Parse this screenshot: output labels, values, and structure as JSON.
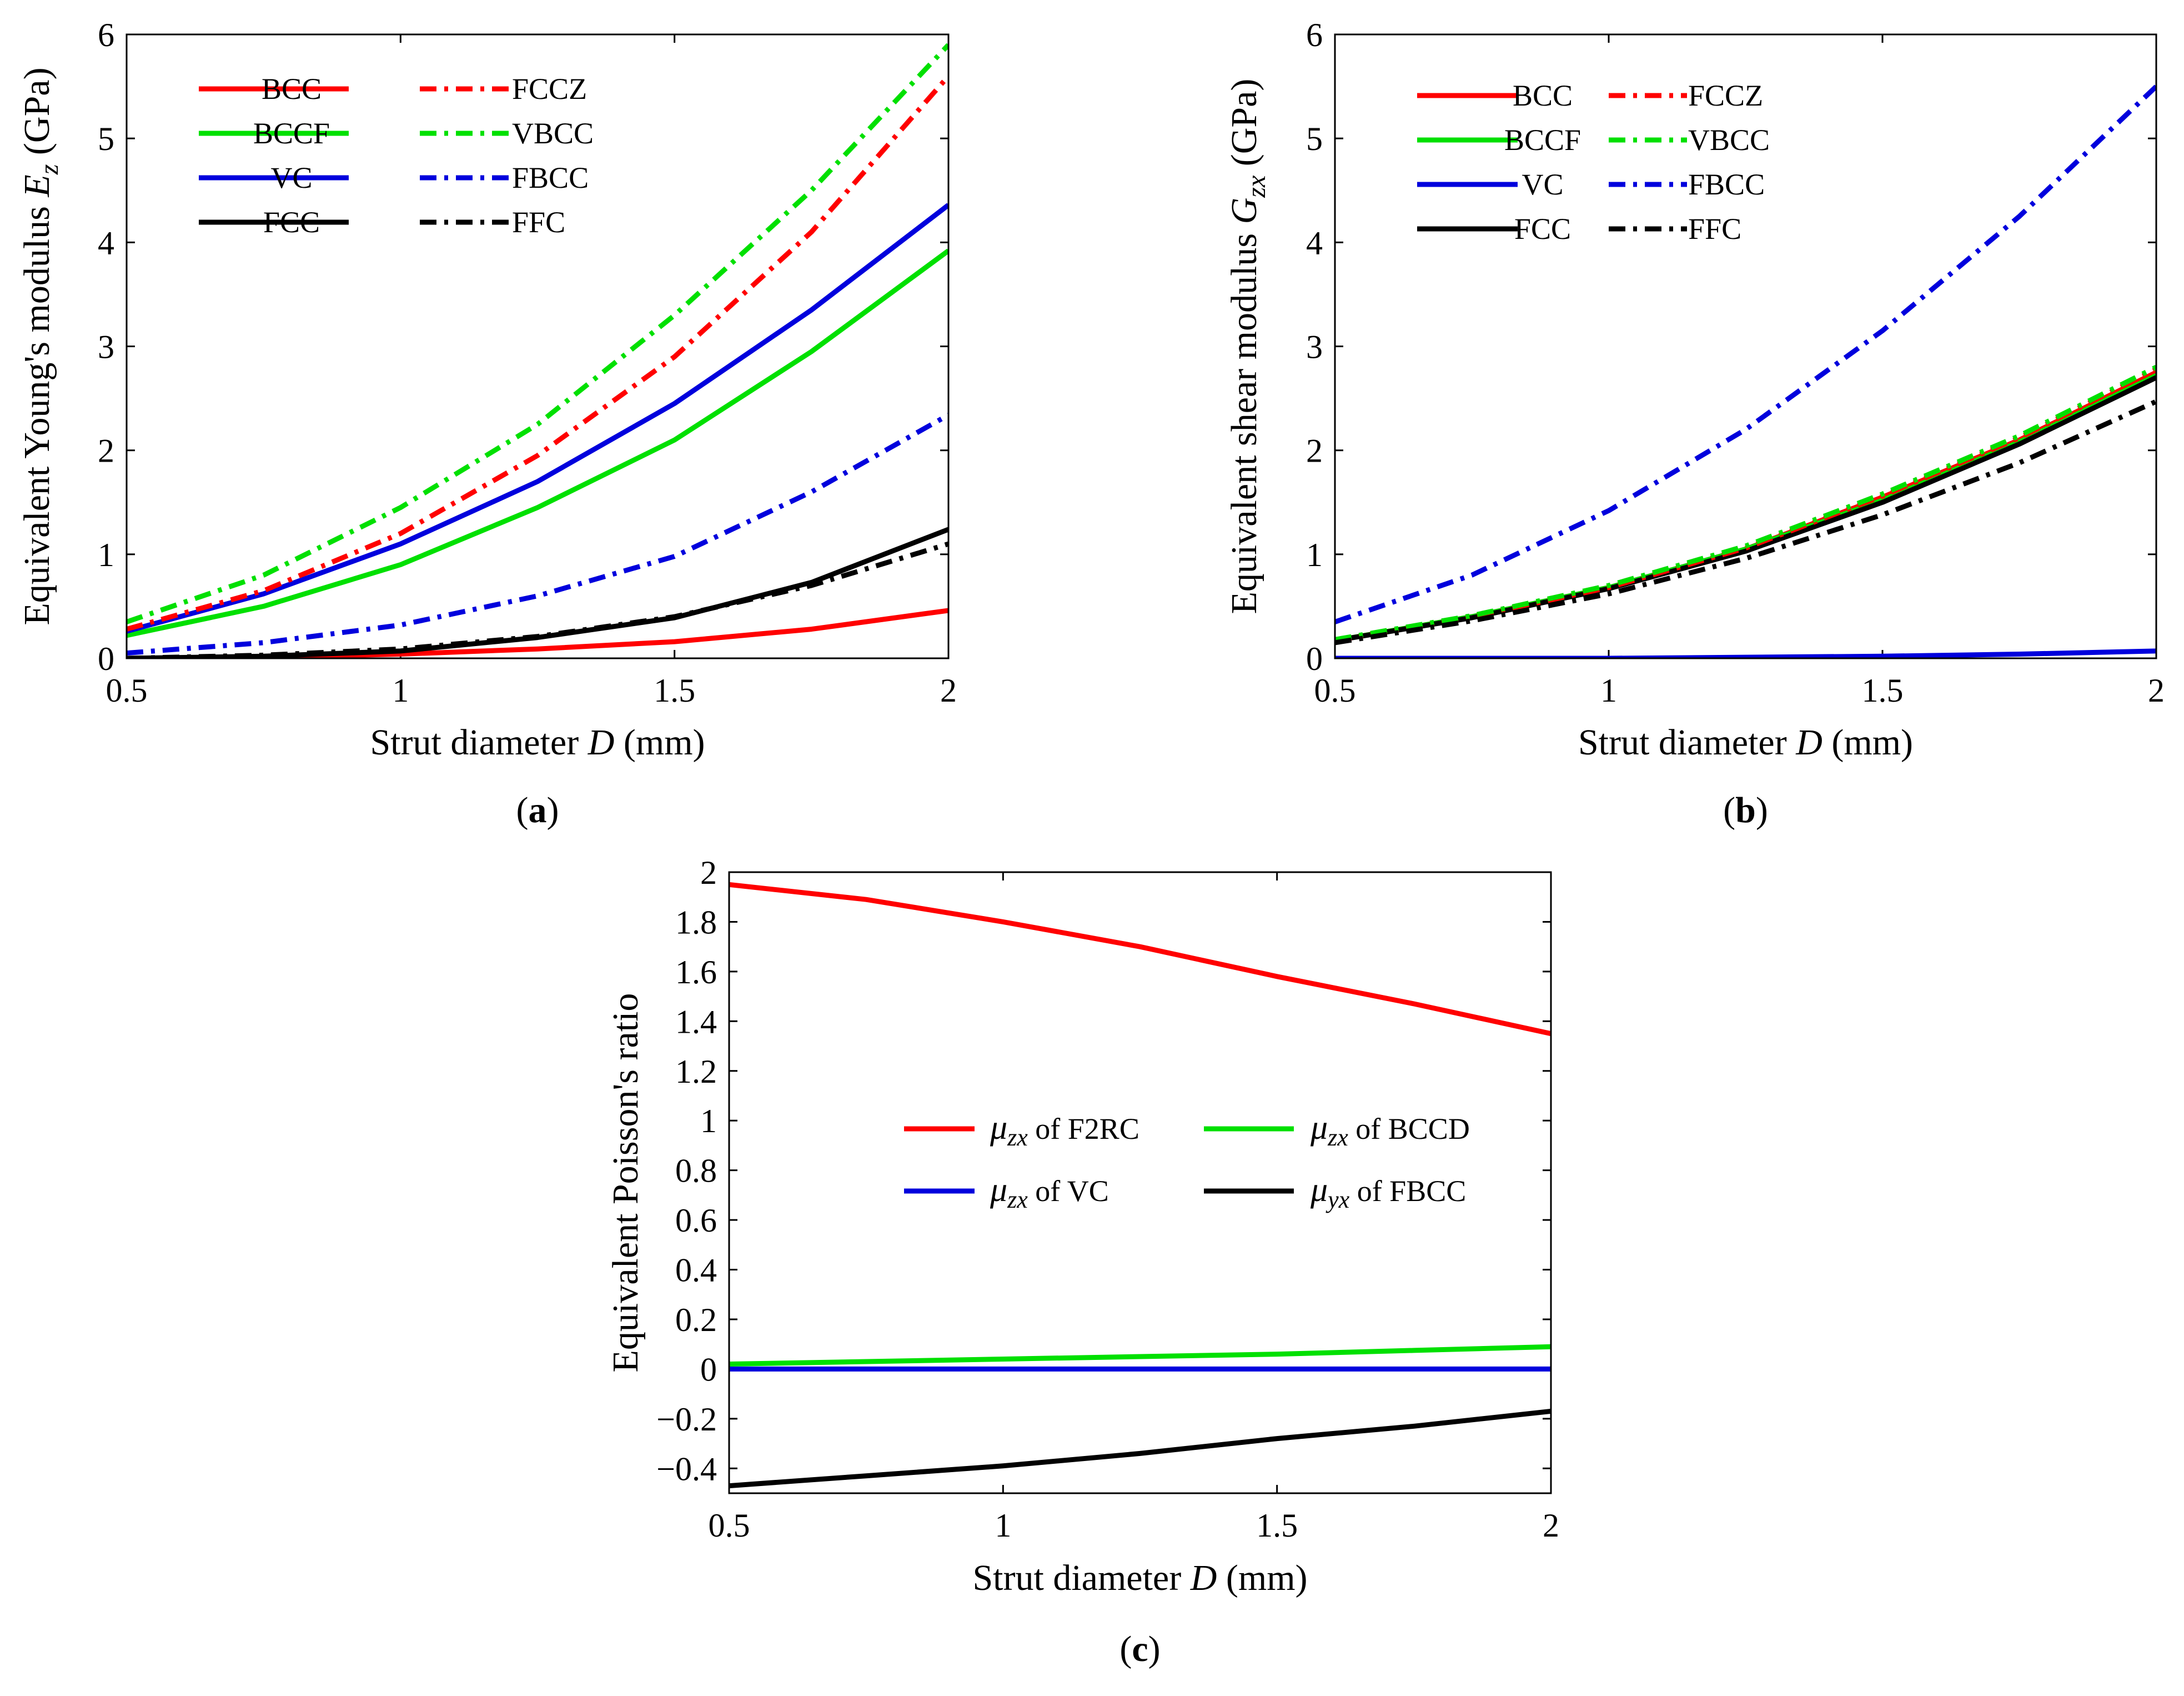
{
  "chart_data": [
    {
      "type": "line",
      "panel_label": "(a)",
      "xlabel": "Strut diameter D (mm)",
      "ylabel": "Equivalent Young's modulus E_z (GPa)",
      "xlim": [
        0.5,
        2
      ],
      "ylim": [
        0,
        6
      ],
      "xticks": [
        0.5,
        1,
        1.5,
        2
      ],
      "yticks": [
        0,
        1,
        2,
        3,
        4,
        5,
        6
      ],
      "legend_location": "top-left",
      "x": [
        0.5,
        0.75,
        1.0,
        1.25,
        1.5,
        1.75,
        2.0
      ],
      "series": [
        {
          "name": "BCC",
          "color": "#ff0000",
          "style": "solid",
          "values": [
            0.0,
            0.01,
            0.04,
            0.09,
            0.16,
            0.28,
            0.46
          ]
        },
        {
          "name": "BCCF",
          "color": "#00e000",
          "style": "solid",
          "values": [
            0.22,
            0.5,
            0.9,
            1.45,
            2.1,
            2.95,
            3.92
          ]
        },
        {
          "name": "VC",
          "color": "#0000dd",
          "style": "solid",
          "values": [
            0.26,
            0.62,
            1.1,
            1.7,
            2.45,
            3.35,
            4.36
          ]
        },
        {
          "name": "FCC",
          "color": "#000000",
          "style": "solid",
          "values": [
            0.0,
            0.02,
            0.07,
            0.2,
            0.39,
            0.73,
            1.24
          ]
        },
        {
          "name": "FCCZ",
          "color": "#ff0000",
          "style": "dashdot",
          "values": [
            0.28,
            0.65,
            1.2,
            1.95,
            2.9,
            4.1,
            5.6
          ]
        },
        {
          "name": "VBCC",
          "color": "#00e000",
          "style": "dashdot",
          "values": [
            0.35,
            0.8,
            1.45,
            2.25,
            3.3,
            4.5,
            5.9
          ]
        },
        {
          "name": "FBCC",
          "color": "#0000dd",
          "style": "dashdot",
          "values": [
            0.05,
            0.15,
            0.32,
            0.6,
            0.98,
            1.6,
            2.34
          ]
        },
        {
          "name": "FFC",
          "color": "#000000",
          "style": "dashdot",
          "values": [
            0.0,
            0.03,
            0.09,
            0.21,
            0.4,
            0.7,
            1.1
          ]
        }
      ]
    },
    {
      "type": "line",
      "panel_label": "(b)",
      "xlabel": "Strut diameter D (mm)",
      "ylabel": "Equivalent shear modulus G_zx (GPa)",
      "xlim": [
        0.5,
        2
      ],
      "ylim": [
        0,
        6
      ],
      "xticks": [
        0.5,
        1,
        1.5,
        2
      ],
      "yticks": [
        0,
        1,
        2,
        3,
        4,
        5,
        6
      ],
      "legend_location": "top-left",
      "x": [
        0.5,
        0.75,
        1.0,
        1.25,
        1.5,
        1.75,
        2.0
      ],
      "series": [
        {
          "name": "BCC",
          "color": "#ff0000",
          "style": "solid",
          "values": [
            0.17,
            0.4,
            0.68,
            1.05,
            1.55,
            2.1,
            2.75
          ]
        },
        {
          "name": "BCCF",
          "color": "#00e000",
          "style": "solid",
          "values": [
            0.17,
            0.4,
            0.68,
            1.05,
            1.52,
            2.08,
            2.72
          ]
        },
        {
          "name": "VC",
          "color": "#0000dd",
          "style": "solid",
          "values": [
            0.0,
            0.0,
            0.0,
            0.01,
            0.02,
            0.04,
            0.07
          ]
        },
        {
          "name": "FCC",
          "color": "#000000",
          "style": "solid",
          "values": [
            0.17,
            0.39,
            0.67,
            1.03,
            1.5,
            2.06,
            2.7
          ]
        },
        {
          "name": "FCCZ",
          "color": "#ff0000",
          "style": "dashdot",
          "values": [
            0.17,
            0.4,
            0.68,
            1.06,
            1.56,
            2.12,
            2.78
          ]
        },
        {
          "name": "VBCC",
          "color": "#00e000",
          "style": "dashdot",
          "values": [
            0.18,
            0.41,
            0.7,
            1.08,
            1.58,
            2.14,
            2.8
          ]
        },
        {
          "name": "FBCC",
          "color": "#0000dd",
          "style": "dashdot",
          "values": [
            0.35,
            0.8,
            1.42,
            2.2,
            3.15,
            4.25,
            5.5
          ]
        },
        {
          "name": "FFC",
          "color": "#000000",
          "style": "dashdot",
          "values": [
            0.15,
            0.36,
            0.62,
            0.96,
            1.38,
            1.88,
            2.47
          ]
        }
      ]
    },
    {
      "type": "line",
      "panel_label": "(c)",
      "xlabel": "Strut diameter D (mm)",
      "ylabel": "Equivalent Poisson's ratio",
      "xlim": [
        0.5,
        2
      ],
      "ylim": [
        -0.5,
        2
      ],
      "xticks": [
        0.5,
        1,
        1.5,
        2
      ],
      "yticks": [
        -0.4,
        -0.2,
        0,
        0.2,
        0.4,
        0.6,
        0.8,
        1,
        1.2,
        1.4,
        1.6,
        1.8,
        2
      ],
      "legend_location": "center",
      "x": [
        0.5,
        0.75,
        1.0,
        1.25,
        1.5,
        1.75,
        2.0
      ],
      "series": [
        {
          "name": "μ_zx of F2RC",
          "symbol": "μ",
          "sub": "zx",
          "suffix": " of F2RC",
          "color": "#ff0000",
          "style": "solid",
          "values": [
            1.95,
            1.89,
            1.8,
            1.7,
            1.58,
            1.47,
            1.35
          ]
        },
        {
          "name": "μ_zx of VC",
          "symbol": "μ",
          "sub": "zx",
          "suffix": " of VC",
          "color": "#0000dd",
          "style": "solid",
          "values": [
            0.0,
            0.0,
            0.0,
            0.0,
            0.0,
            0.0,
            0.0
          ]
        },
        {
          "name": "μ_zx of BCCD",
          "symbol": "μ",
          "sub": "zx",
          "suffix": " of BCCD",
          "color": "#00e000",
          "style": "solid",
          "values": [
            0.02,
            0.03,
            0.04,
            0.05,
            0.06,
            0.075,
            0.09
          ]
        },
        {
          "name": "μ_yx of FBCC",
          "symbol": "μ",
          "sub": "yx",
          "suffix": " of FBCC",
          "color": "#000000",
          "style": "solid",
          "values": [
            -0.47,
            -0.43,
            -0.39,
            -0.34,
            -0.28,
            -0.23,
            -0.17
          ]
        }
      ]
    }
  ]
}
